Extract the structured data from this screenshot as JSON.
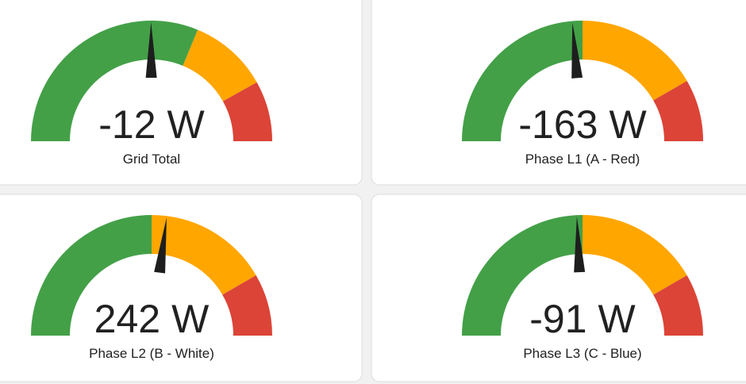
{
  "gauges": [
    {
      "value": -12,
      "unit": "W",
      "name": "Grid Total",
      "min": -4000,
      "max": 4000,
      "segments": [
        {
          "from": -4000,
          "color": "#43a047"
        },
        {
          "from": 1000,
          "color": "#ffa600"
        },
        {
          "from": 2700,
          "color": "#db4437"
        }
      ]
    },
    {
      "value": -163,
      "unit": "W",
      "name": "Phase L1 (A - Red)",
      "min": -3000,
      "max": 3000,
      "segments": [
        {
          "from": -3000,
          "color": "#43a047"
        },
        {
          "from": 0,
          "color": "#ffa600"
        },
        {
          "from": 2000,
          "color": "#db4437"
        }
      ]
    },
    {
      "value": 242,
      "unit": "W",
      "name": "Phase L2 (B - White)",
      "min": -3000,
      "max": 3000,
      "segments": [
        {
          "from": -3000,
          "color": "#43a047"
        },
        {
          "from": 0,
          "color": "#ffa600"
        },
        {
          "from": 2000,
          "color": "#db4437"
        }
      ]
    },
    {
      "value": -91,
      "unit": "W",
      "name": "Phase L3 (C - Blue)",
      "min": -3000,
      "max": 3000,
      "segments": [
        {
          "from": -3000,
          "color": "#43a047"
        },
        {
          "from": 0,
          "color": "#ffa600"
        },
        {
          "from": 2000,
          "color": "#db4437"
        }
      ]
    }
  ]
}
